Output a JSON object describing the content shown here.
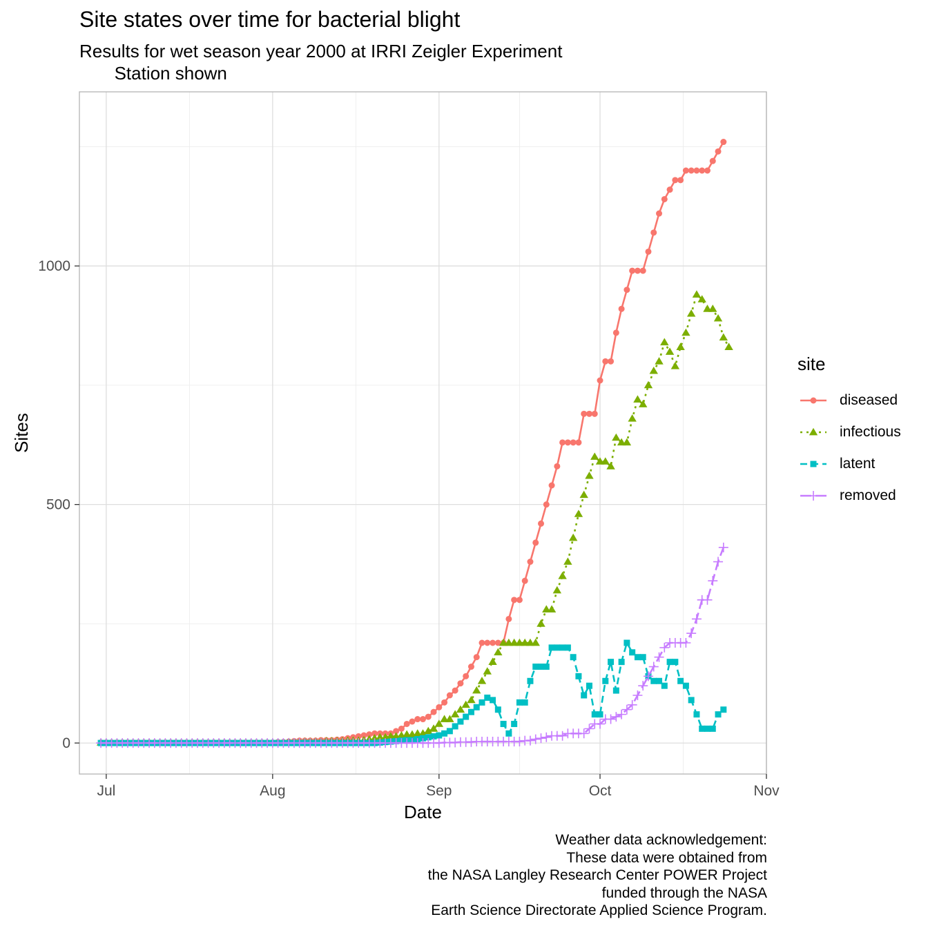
{
  "title": "Site states over time for bacterial blight",
  "subtitle": "Results for wet season year 2000 at IRRI Zeigler Experiment\n       Station shown",
  "caption": "Weather data acknowledgement:\nThese data were obtained from\nthe NASA Langley Research Center POWER Project\nfunded through the NASA\nEarth Science Directorate Applied Science Program.",
  "chart_data": {
    "type": "line",
    "title": "Site states over time for bacterial blight",
    "subtitle": "Results for wet season year 2000 at IRRI Zeigler Experiment Station shown",
    "xlabel": "Date",
    "ylabel": "Sites",
    "x_start": "2000-06-30",
    "x_end": "2000-10-26",
    "xlim": [
      "2000-06-26",
      "2000-11-01"
    ],
    "ylim": [
      -65,
      1365
    ],
    "x_ticks": [
      {
        "date": "2000-07-01",
        "label": "Jul"
      },
      {
        "date": "2000-08-01",
        "label": "Aug"
      },
      {
        "date": "2000-09-01",
        "label": "Sep"
      },
      {
        "date": "2000-10-01",
        "label": "Oct"
      },
      {
        "date": "2000-11-01",
        "label": "Nov"
      }
    ],
    "y_ticks": [
      0,
      500,
      1000
    ],
    "y_minor": [
      250,
      750,
      1250
    ],
    "grid": true,
    "legend_title": "site",
    "legend_position": "right",
    "series": [
      {
        "name": "diseased",
        "color": "#F8766D",
        "shape": "circle",
        "linetype": "solid",
        "values": [
          1,
          1,
          1,
          1,
          1,
          1,
          1,
          1,
          1,
          1,
          1,
          1,
          1,
          1,
          1,
          1,
          1,
          1,
          1,
          1,
          1,
          1,
          1,
          1,
          1,
          1,
          1,
          1,
          1,
          1,
          1,
          1,
          1,
          2,
          2,
          3,
          4,
          5,
          5,
          5,
          5,
          6,
          6,
          6,
          7,
          8,
          10,
          12,
          14,
          16,
          18,
          20,
          20,
          20,
          20,
          25,
          30,
          40,
          45,
          50,
          50,
          55,
          65,
          75,
          85,
          100,
          110,
          125,
          140,
          160,
          180,
          210,
          210,
          210,
          210,
          210,
          260,
          300,
          300,
          340,
          380,
          420,
          460,
          500,
          540,
          580,
          630,
          630,
          630,
          630,
          690,
          690,
          690,
          760,
          800,
          800,
          860,
          910,
          950,
          990,
          990,
          990,
          1030,
          1070,
          1110,
          1140,
          1160,
          1180,
          1180,
          1200,
          1200,
          1200,
          1200,
          1200,
          1220,
          1240,
          1260
        ]
      },
      {
        "name": "infectious",
        "color": "#7CAE00",
        "shape": "triangle",
        "linetype": "dotted",
        "values": [
          1,
          1,
          1,
          1,
          1,
          1,
          1,
          1,
          1,
          1,
          1,
          1,
          1,
          1,
          1,
          1,
          1,
          1,
          1,
          1,
          1,
          1,
          1,
          1,
          1,
          1,
          1,
          1,
          1,
          1,
          1,
          1,
          1,
          1,
          1,
          2,
          2,
          2,
          3,
          3,
          3,
          3,
          4,
          4,
          4,
          4,
          5,
          5,
          5,
          6,
          8,
          10,
          12,
          12,
          14,
          14,
          16,
          18,
          18,
          20,
          20,
          25,
          30,
          40,
          50,
          50,
          60,
          70,
          80,
          90,
          110,
          130,
          150,
          170,
          190,
          210,
          210,
          210,
          210,
          210,
          210,
          210,
          250,
          280,
          280,
          320,
          350,
          380,
          430,
          480,
          520,
          560,
          600,
          590,
          590,
          580,
          640,
          630,
          630,
          680,
          720,
          710,
          750,
          780,
          800,
          840,
          820,
          790,
          830,
          860,
          900,
          940,
          930,
          910,
          910,
          890,
          850,
          830
        ]
      },
      {
        "name": "latent",
        "color": "#00BFC4",
        "shape": "square",
        "linetype": "dashed",
        "values": [
          0,
          0,
          0,
          0,
          0,
          0,
          0,
          0,
          0,
          0,
          0,
          0,
          0,
          0,
          0,
          0,
          0,
          0,
          0,
          0,
          0,
          0,
          0,
          0,
          0,
          0,
          0,
          0,
          0,
          0,
          0,
          0,
          0,
          0,
          0,
          0,
          0,
          0,
          0,
          0,
          0,
          0,
          0,
          0,
          0,
          0,
          0,
          0,
          0,
          0,
          0,
          0,
          1,
          2,
          3,
          4,
          5,
          6,
          6,
          8,
          10,
          12,
          14,
          16,
          20,
          25,
          35,
          45,
          55,
          65,
          75,
          85,
          95,
          90,
          70,
          40,
          20,
          40,
          85,
          85,
          130,
          160,
          160,
          160,
          200,
          200,
          200,
          200,
          180,
          140,
          100,
          120,
          60,
          60,
          130,
          170,
          110,
          170,
          210,
          190,
          180,
          180,
          140,
          130,
          130,
          120,
          170,
          170,
          130,
          120,
          90,
          60,
          30,
          30,
          30,
          60,
          70
        ]
      },
      {
        "name": "removed",
        "color": "#C77CFF",
        "shape": "plus",
        "linetype": "longdash",
        "values": [
          0,
          0,
          0,
          0,
          0,
          0,
          0,
          0,
          0,
          0,
          0,
          0,
          0,
          0,
          0,
          0,
          0,
          0,
          0,
          0,
          0,
          0,
          0,
          0,
          0,
          0,
          0,
          0,
          0,
          0,
          0,
          0,
          0,
          0,
          0,
          0,
          0,
          0,
          0,
          0,
          0,
          0,
          0,
          0,
          0,
          0,
          0,
          0,
          0,
          0,
          0,
          0,
          0,
          0,
          0,
          0,
          0,
          0,
          0,
          0,
          0,
          0,
          0,
          0,
          1,
          1,
          1,
          2,
          2,
          2,
          3,
          3,
          3,
          3,
          3,
          3,
          3,
          3,
          3,
          5,
          5,
          8,
          10,
          12,
          15,
          15,
          15,
          20,
          20,
          20,
          20,
          30,
          40,
          40,
          50,
          50,
          55,
          60,
          70,
          80,
          100,
          120,
          140,
          160,
          180,
          200,
          210,
          210,
          210,
          210,
          230,
          260,
          300,
          300,
          340,
          380,
          410
        ]
      }
    ]
  }
}
